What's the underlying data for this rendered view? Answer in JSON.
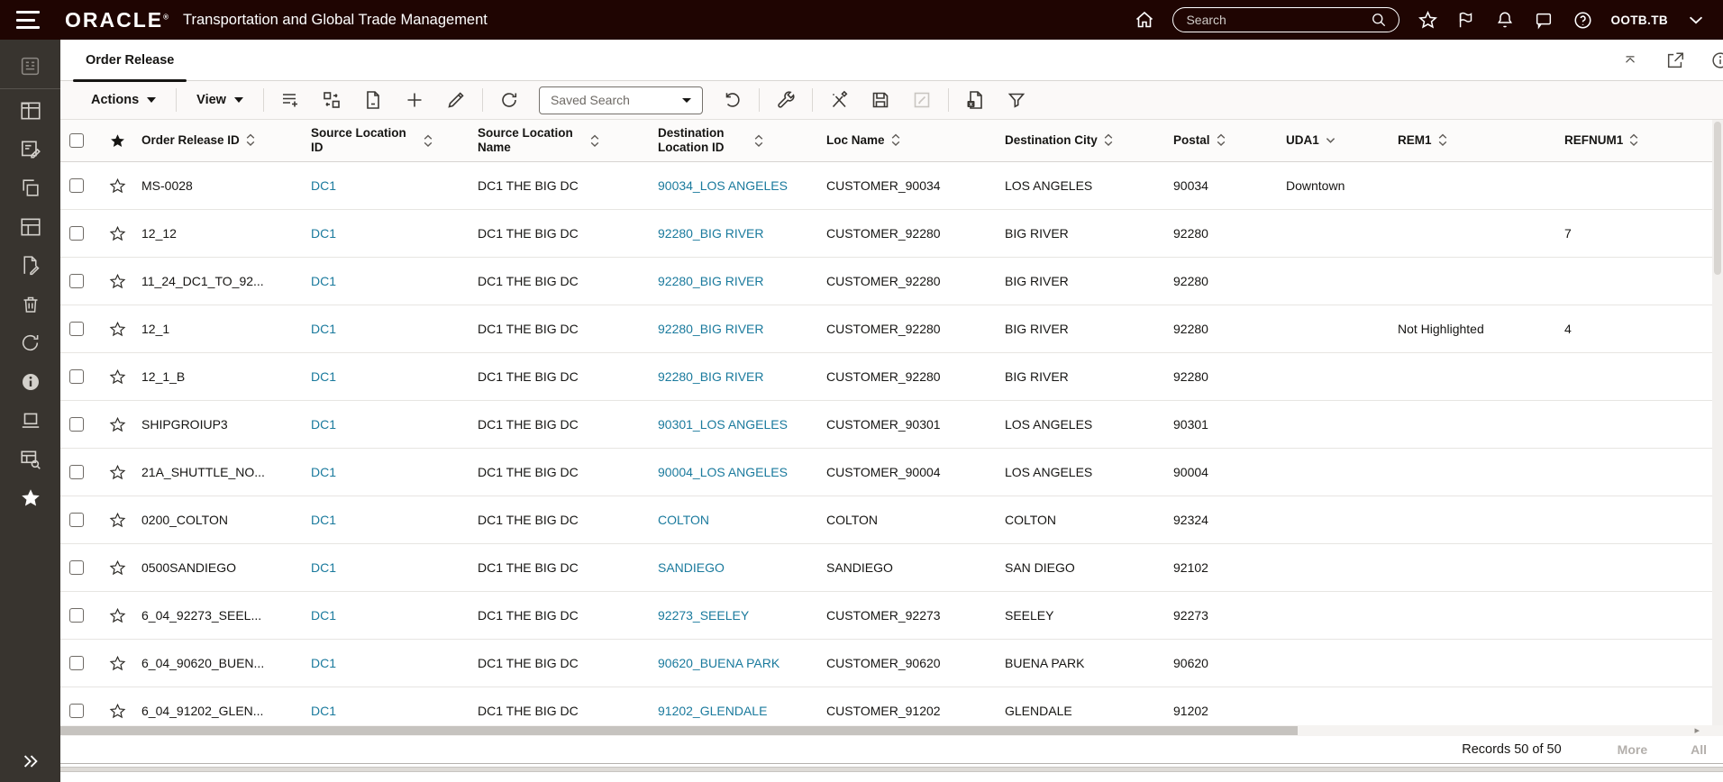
{
  "topbar": {
    "brand": "ORACLE",
    "app_title": "Transportation and Global Trade Management",
    "search_placeholder": "Search",
    "user": "OOTB.TB",
    "icons": [
      "hamburger-menu-icon",
      "home-icon",
      "search-icon",
      "favorites-star-icon",
      "flag-icon",
      "notifications-bell-icon",
      "messages-icon",
      "help-icon",
      "chevron-down-icon"
    ]
  },
  "sidebar": {
    "icons": [
      "springboard-icon",
      "workbench-icon",
      "order-entry-icon",
      "copy-icon",
      "screen-layout-icon",
      "document-edit-icon",
      "trash-icon",
      "refresh-icon",
      "info-icon",
      "workstation-icon",
      "table-search-icon",
      "favorites-star-icon",
      "expand-double-chevron-icon"
    ]
  },
  "tab": {
    "label": "Order Release"
  },
  "tabrow_icons": [
    "chevron-up-icon",
    "open-window-icon",
    "info-circle-icon"
  ],
  "toolbar": {
    "actions_label": "Actions",
    "view_label": "View",
    "saved_search_label": "Saved Search",
    "icons": [
      "list-add-icon",
      "swap-columns-icon",
      "new-page-icon",
      "plus-icon",
      "pencil-icon",
      "reload-icon",
      "refresh-icon",
      "wrench-icon",
      "unmatch-icon",
      "save-icon",
      "edit-square-icon",
      "export-excel-icon",
      "filter-funnel-icon"
    ]
  },
  "table": {
    "columns": [
      {
        "label": "",
        "type": "check"
      },
      {
        "label": "",
        "type": "star"
      },
      {
        "label": "Order Release ID",
        "sort": "both"
      },
      {
        "label": "Source Location ID",
        "sort": "both"
      },
      {
        "label": "Source Location Name",
        "sort": "both"
      },
      {
        "label": "Destination Location ID",
        "sort": "both"
      },
      {
        "label": "Loc Name",
        "sort": "both"
      },
      {
        "label": "Destination City",
        "sort": "both"
      },
      {
        "label": "Postal",
        "sort": "both"
      },
      {
        "label": "UDA1",
        "sort": "down"
      },
      {
        "label": "REM1",
        "sort": "both"
      },
      {
        "label": "REFNUM1",
        "sort": "both"
      }
    ],
    "rows": [
      {
        "id": "MS-0028",
        "src_loc_id": "DC1",
        "src_loc_name": "DC1 THE BIG DC",
        "dest_loc_id": "90034_LOS ANGELES",
        "loc_name": "CUSTOMER_90034",
        "dest_city": "LOS ANGELES",
        "postal": "90034",
        "uda1": "Downtown",
        "rem1": "",
        "refnum1": ""
      },
      {
        "id": "12_12",
        "src_loc_id": "DC1",
        "src_loc_name": "DC1 THE BIG DC",
        "dest_loc_id": "92280_BIG RIVER",
        "loc_name": "CUSTOMER_92280",
        "dest_city": "BIG RIVER",
        "postal": "92280",
        "uda1": "",
        "rem1": "",
        "refnum1": "7"
      },
      {
        "id": "11_24_DC1_TO_92...",
        "src_loc_id": "DC1",
        "src_loc_name": "DC1 THE BIG DC",
        "dest_loc_id": "92280_BIG RIVER",
        "loc_name": "CUSTOMER_92280",
        "dest_city": "BIG RIVER",
        "postal": "92280",
        "uda1": "",
        "rem1": "",
        "refnum1": ""
      },
      {
        "id": "12_1",
        "src_loc_id": "DC1",
        "src_loc_name": "DC1 THE BIG DC",
        "dest_loc_id": "92280_BIG RIVER",
        "loc_name": "CUSTOMER_92280",
        "dest_city": "BIG RIVER",
        "postal": "92280",
        "uda1": "",
        "rem1": "Not Highlighted",
        "refnum1": "4"
      },
      {
        "id": "12_1_B",
        "src_loc_id": "DC1",
        "src_loc_name": "DC1 THE BIG DC",
        "dest_loc_id": "92280_BIG RIVER",
        "loc_name": "CUSTOMER_92280",
        "dest_city": "BIG RIVER",
        "postal": "92280",
        "uda1": "",
        "rem1": "",
        "refnum1": ""
      },
      {
        "id": "SHIPGROIUP3",
        "src_loc_id": "DC1",
        "src_loc_name": "DC1 THE BIG DC",
        "dest_loc_id": "90301_LOS ANGELES",
        "loc_name": "CUSTOMER_90301",
        "dest_city": "LOS ANGELES",
        "postal": "90301",
        "uda1": "",
        "rem1": "",
        "refnum1": ""
      },
      {
        "id": "21A_SHUTTLE_NO...",
        "src_loc_id": "DC1",
        "src_loc_name": "DC1 THE BIG DC",
        "dest_loc_id": "90004_LOS ANGELES",
        "loc_name": "CUSTOMER_90004",
        "dest_city": "LOS ANGELES",
        "postal": "90004",
        "uda1": "",
        "rem1": "",
        "refnum1": ""
      },
      {
        "id": "0200_COLTON",
        "src_loc_id": "DC1",
        "src_loc_name": "DC1 THE BIG DC",
        "dest_loc_id": "COLTON",
        "loc_name": "COLTON",
        "dest_city": "COLTON",
        "postal": "92324",
        "uda1": "",
        "rem1": "",
        "refnum1": ""
      },
      {
        "id": "0500SANDIEGO",
        "src_loc_id": "DC1",
        "src_loc_name": "DC1 THE BIG DC",
        "dest_loc_id": "SANDIEGO",
        "loc_name": "SANDIEGO",
        "dest_city": "SAN DIEGO",
        "postal": "92102",
        "uda1": "",
        "rem1": "",
        "refnum1": ""
      },
      {
        "id": "6_04_92273_SEEL...",
        "src_loc_id": "DC1",
        "src_loc_name": "DC1 THE BIG DC",
        "dest_loc_id": "92273_SEELEY",
        "loc_name": "CUSTOMER_92273",
        "dest_city": "SEELEY",
        "postal": "92273",
        "uda1": "",
        "rem1": "",
        "refnum1": ""
      },
      {
        "id": "6_04_90620_BUEN...",
        "src_loc_id": "DC1",
        "src_loc_name": "DC1 THE BIG DC",
        "dest_loc_id": "90620_BUENA PARK",
        "loc_name": "CUSTOMER_90620",
        "dest_city": "BUENA PARK",
        "postal": "90620",
        "uda1": "",
        "rem1": "",
        "refnum1": ""
      },
      {
        "id": "6_04_91202_GLEN...",
        "src_loc_id": "DC1",
        "src_loc_name": "DC1 THE BIG DC",
        "dest_loc_id": "91202_GLENDALE",
        "loc_name": "CUSTOMER_91202",
        "dest_city": "GLENDALE",
        "postal": "91202",
        "uda1": "",
        "rem1": "",
        "refnum1": ""
      }
    ]
  },
  "footer": {
    "records": "Records 50 of 50",
    "more": "More",
    "all": "All"
  },
  "colors": {
    "topbar_bg": "#1f0502",
    "sidebar_bg": "#38342f",
    "link": "#1a7a9d",
    "text": "#161513",
    "active_tab_underline": "#161513",
    "disabled": "#b3afab"
  }
}
